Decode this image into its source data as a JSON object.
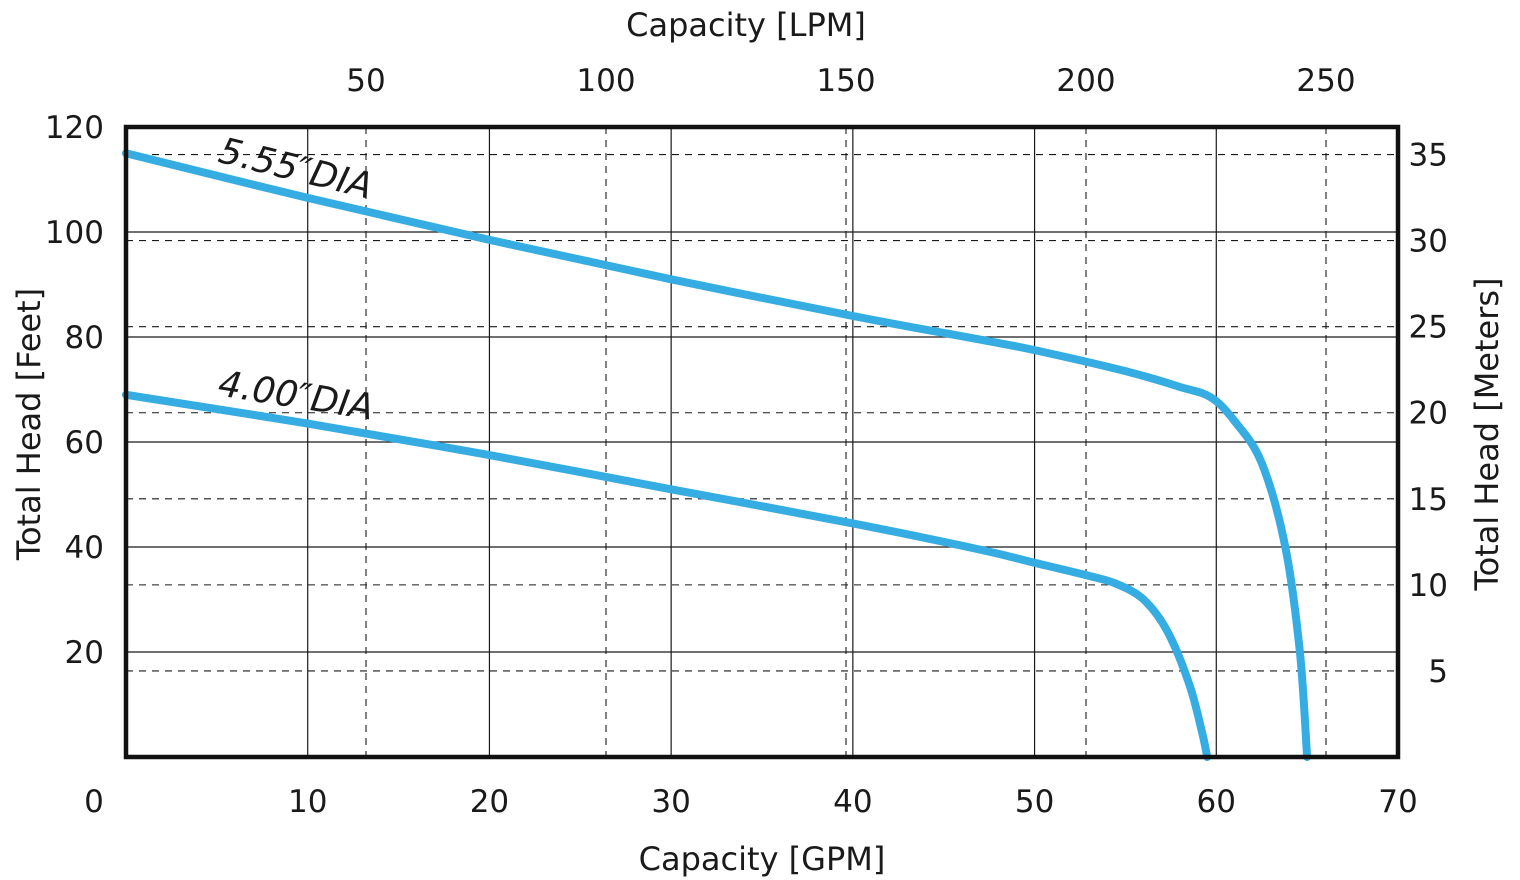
{
  "chart_data": {
    "type": "line",
    "xlabel": "Capacity [GPM]",
    "ylabel": "Total Head [Feet]",
    "x2label": "Capacity [LPM]",
    "y2label": "Total Head [Meters]",
    "xlim": [
      0,
      70
    ],
    "ylim": [
      0,
      120
    ],
    "x2lim": [
      0,
      265
    ],
    "y2lim": [
      0,
      36.6
    ],
    "x_ticks": [
      "0",
      "10",
      "20",
      "30",
      "40",
      "50",
      "60",
      "70"
    ],
    "y_ticks": [
      "20",
      "40",
      "60",
      "80",
      "100",
      "120"
    ],
    "x2_ticks": [
      "50",
      "100",
      "150",
      "200",
      "250"
    ],
    "y2_ticks": [
      "5",
      "10",
      "15",
      "20",
      "25",
      "30",
      "35"
    ],
    "grid": true,
    "curve_color": "#36ade2",
    "series": [
      {
        "name": "5.55″DIA",
        "x": [
          0,
          10,
          20,
          30,
          40,
          47,
          50,
          55,
          58,
          59.7,
          61,
          62.5,
          63.8,
          64.6,
          65
        ],
        "y": [
          115,
          106.5,
          98.5,
          91,
          84,
          79.5,
          77.5,
          73.5,
          70.5,
          68.5,
          64,
          56,
          40,
          20,
          0
        ]
      },
      {
        "name": "4.00″DIA",
        "x": [
          0,
          10,
          20,
          30,
          40,
          47,
          50,
          53,
          54.5,
          56,
          57.3,
          58.5,
          59.2,
          59.5
        ],
        "y": [
          69,
          63.5,
          57.5,
          51,
          44.5,
          39.5,
          37,
          34.5,
          33,
          30,
          24,
          14,
          5,
          0
        ]
      }
    ]
  }
}
